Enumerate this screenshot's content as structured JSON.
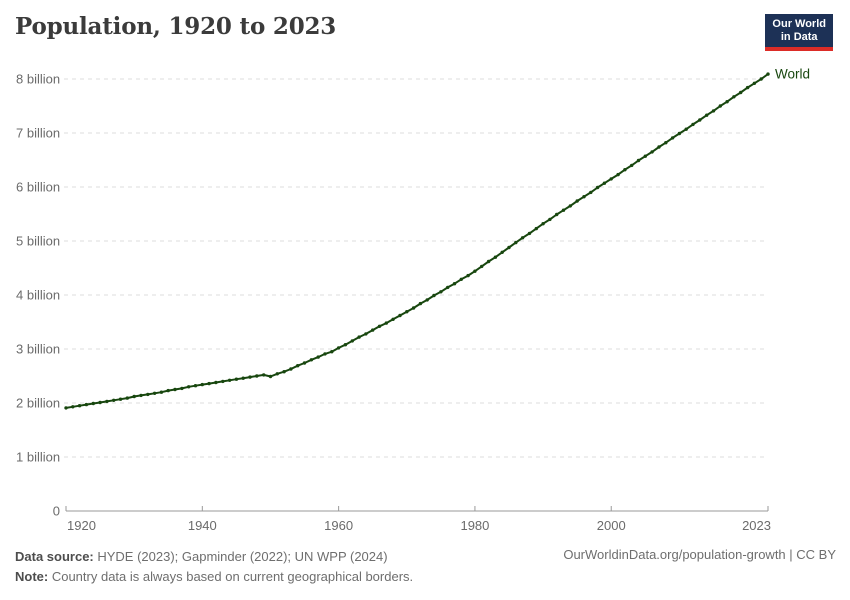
{
  "header": {
    "title": "Population, 1920 to 2023",
    "logo": {
      "line1": "Our World",
      "line2": "in Data"
    }
  },
  "chart_data": {
    "type": "line",
    "title": "Population, 1920 to 2023",
    "xlabel": "",
    "ylabel": "",
    "unit": "billion people",
    "xlim": [
      1920,
      2023
    ],
    "ylim": [
      0,
      8
    ],
    "grid": "horizontal-dashed",
    "legend": "end-of-line-label",
    "xtick_values": [
      1920,
      1940,
      1960,
      1980,
      2000,
      2023
    ],
    "xtick_labels": [
      "1920",
      "1940",
      "1960",
      "1980",
      "2000",
      "2023"
    ],
    "ytick_values": [
      0,
      1,
      2,
      3,
      4,
      5,
      6,
      7,
      8
    ],
    "ytick_labels": [
      "0",
      "1 billion",
      "2 billion",
      "3 billion",
      "4 billion",
      "5 billion",
      "6 billion",
      "7 billion",
      "8 billion"
    ],
    "series": [
      {
        "name": "World",
        "color": "#18470f",
        "points": [
          [
            1920,
            1.91
          ],
          [
            1921,
            1.93
          ],
          [
            1922,
            1.95
          ],
          [
            1923,
            1.97
          ],
          [
            1924,
            1.99
          ],
          [
            1925,
            2.01
          ],
          [
            1926,
            2.03
          ],
          [
            1927,
            2.05
          ],
          [
            1928,
            2.07
          ],
          [
            1929,
            2.09
          ],
          [
            1930,
            2.12
          ],
          [
            1931,
            2.14
          ],
          [
            1932,
            2.16
          ],
          [
            1933,
            2.18
          ],
          [
            1934,
            2.2
          ],
          [
            1935,
            2.23
          ],
          [
            1936,
            2.25
          ],
          [
            1937,
            2.27
          ],
          [
            1938,
            2.3
          ],
          [
            1939,
            2.32
          ],
          [
            1940,
            2.34
          ],
          [
            1941,
            2.36
          ],
          [
            1942,
            2.38
          ],
          [
            1943,
            2.4
          ],
          [
            1944,
            2.42
          ],
          [
            1945,
            2.44
          ],
          [
            1946,
            2.46
          ],
          [
            1947,
            2.48
          ],
          [
            1948,
            2.5
          ],
          [
            1949,
            2.52
          ],
          [
            1950,
            2.49
          ],
          [
            1951,
            2.54
          ],
          [
            1952,
            2.58
          ],
          [
            1953,
            2.63
          ],
          [
            1954,
            2.69
          ],
          [
            1955,
            2.74
          ],
          [
            1956,
            2.8
          ],
          [
            1957,
            2.85
          ],
          [
            1958,
            2.91
          ],
          [
            1959,
            2.95
          ],
          [
            1960,
            3.02
          ],
          [
            1961,
            3.08
          ],
          [
            1962,
            3.15
          ],
          [
            1963,
            3.22
          ],
          [
            1964,
            3.28
          ],
          [
            1965,
            3.35
          ],
          [
            1966,
            3.42
          ],
          [
            1967,
            3.48
          ],
          [
            1968,
            3.55
          ],
          [
            1969,
            3.62
          ],
          [
            1970,
            3.69
          ],
          [
            1971,
            3.76
          ],
          [
            1972,
            3.84
          ],
          [
            1973,
            3.91
          ],
          [
            1974,
            3.99
          ],
          [
            1975,
            4.06
          ],
          [
            1976,
            4.14
          ],
          [
            1977,
            4.21
          ],
          [
            1978,
            4.29
          ],
          [
            1979,
            4.36
          ],
          [
            1980,
            4.44
          ],
          [
            1981,
            4.53
          ],
          [
            1982,
            4.62
          ],
          [
            1983,
            4.7
          ],
          [
            1984,
            4.79
          ],
          [
            1985,
            4.88
          ],
          [
            1986,
            4.97
          ],
          [
            1987,
            5.06
          ],
          [
            1988,
            5.14
          ],
          [
            1989,
            5.23
          ],
          [
            1990,
            5.32
          ],
          [
            1991,
            5.4
          ],
          [
            1992,
            5.49
          ],
          [
            1993,
            5.57
          ],
          [
            1994,
            5.65
          ],
          [
            1995,
            5.74
          ],
          [
            1996,
            5.82
          ],
          [
            1997,
            5.9
          ],
          [
            1998,
            5.99
          ],
          [
            1999,
            6.07
          ],
          [
            2000,
            6.15
          ],
          [
            2001,
            6.23
          ],
          [
            2002,
            6.32
          ],
          [
            2003,
            6.4
          ],
          [
            2004,
            6.49
          ],
          [
            2005,
            6.57
          ],
          [
            2006,
            6.65
          ],
          [
            2007,
            6.74
          ],
          [
            2008,
            6.82
          ],
          [
            2009,
            6.91
          ],
          [
            2010,
            6.99
          ],
          [
            2011,
            7.07
          ],
          [
            2012,
            7.16
          ],
          [
            2013,
            7.24
          ],
          [
            2014,
            7.33
          ],
          [
            2015,
            7.41
          ],
          [
            2016,
            7.5
          ],
          [
            2017,
            7.58
          ],
          [
            2018,
            7.67
          ],
          [
            2019,
            7.75
          ],
          [
            2020,
            7.84
          ],
          [
            2021,
            7.92
          ],
          [
            2022,
            8.0
          ],
          [
            2023,
            8.09
          ]
        ]
      }
    ]
  },
  "footer": {
    "data_source_label": "Data source:",
    "data_source_text": " HYDE (2023); Gapminder (2022); UN WPP (2024)",
    "note_label": "Note:",
    "note_text": " Country data is always based on current geographical borders.",
    "link": "OurWorldinData.org/population-growth | CC BY"
  },
  "colors": {
    "line": "#18470f",
    "grid": "#dcdcdc",
    "axis": "#999999",
    "tick_text": "#6b6b6b",
    "title_text": "#3b3b3b",
    "footer_text": "#6e6e6e",
    "logo_bg": "#1d3156",
    "logo_red": "#dc2c27",
    "background": "#ffffff"
  }
}
